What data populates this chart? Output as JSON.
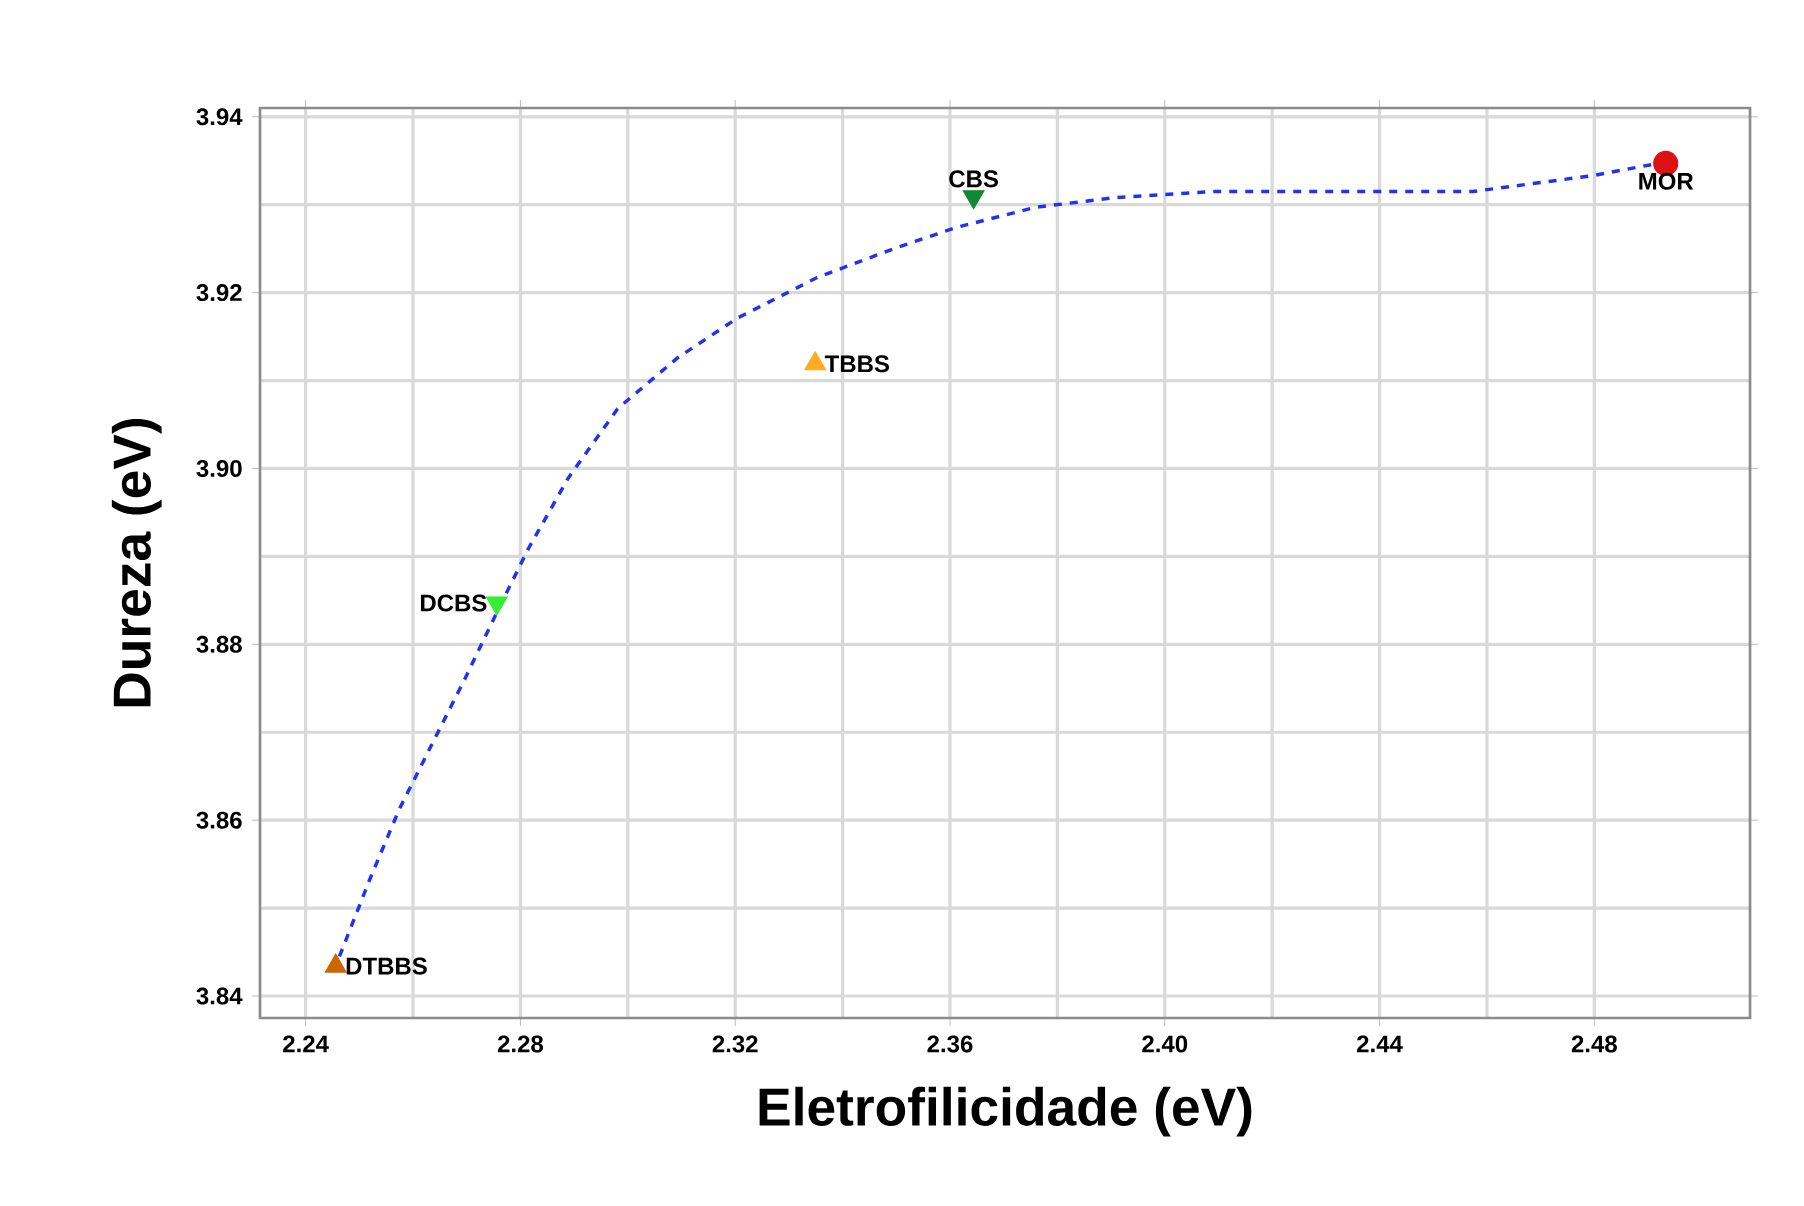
{
  "chart_data": {
    "type": "scatter",
    "xlabel": "Eletrofilicidade (eV)",
    "ylabel": "Dureza (eV)",
    "xlim": [
      2.2315,
      2.509
    ],
    "ylim": [
      3.8375,
      3.941
    ],
    "xticks": [
      2.24,
      2.28,
      2.32,
      2.36,
      {
        "value": 2.4,
        "label": "2.40"
      },
      2.44,
      2.48
    ],
    "yticks": [
      3.84,
      3.86,
      3.88,
      {
        "value": 3.9,
        "label": "3.90"
      },
      3.92,
      3.94
    ],
    "grid": true,
    "series": [
      {
        "name": "DTBBS",
        "color": "#cc6600",
        "marker": "triangle",
        "x": [
          2.2456
        ],
        "values": [
          3.8434
        ]
      },
      {
        "name": "DCBS",
        "color": "#33ee33",
        "marker": "triangle",
        "x": [
          2.2756
        ],
        "values": [
          3.8847
        ]
      },
      {
        "name": "TBBS",
        "color": "#ffaa22",
        "marker": "triangle",
        "x": [
          2.3349
        ],
        "values": [
          3.9119
        ]
      },
      {
        "name": "CBS",
        "color": "#118833",
        "marker": "triangle",
        "x": [
          2.3644
        ],
        "values": [
          3.9309
        ]
      },
      {
        "name": "MOR",
        "color": "#dd1111",
        "marker": "circle",
        "x": [
          2.4933
        ],
        "values": [
          3.9347
        ]
      },
      {
        "type": "line",
        "color": "#2233ee",
        "marker": "none",
        "line_style": "dashed",
        "x": [
          2.2463,
          2.2519,
          2.2574,
          2.263,
          2.2696,
          2.2759,
          2.2815,
          2.2889,
          2.2981,
          2.3093,
          2.3204,
          2.3352,
          2.35,
          2.3611,
          2.3759,
          2.3907,
          2.4093,
          2.4426,
          2.4574,
          2.4796,
          2.4919
        ],
        "values": [
          3.8445,
          3.8532,
          3.8612,
          3.868,
          3.876,
          3.884,
          3.8909,
          3.8989,
          3.9068,
          3.9126,
          3.9171,
          3.9217,
          3.9251,
          3.9274,
          3.9297,
          3.9308,
          3.9315,
          3.9315,
          3.9315,
          3.9333,
          3.9347
        ]
      }
    ]
  }
}
